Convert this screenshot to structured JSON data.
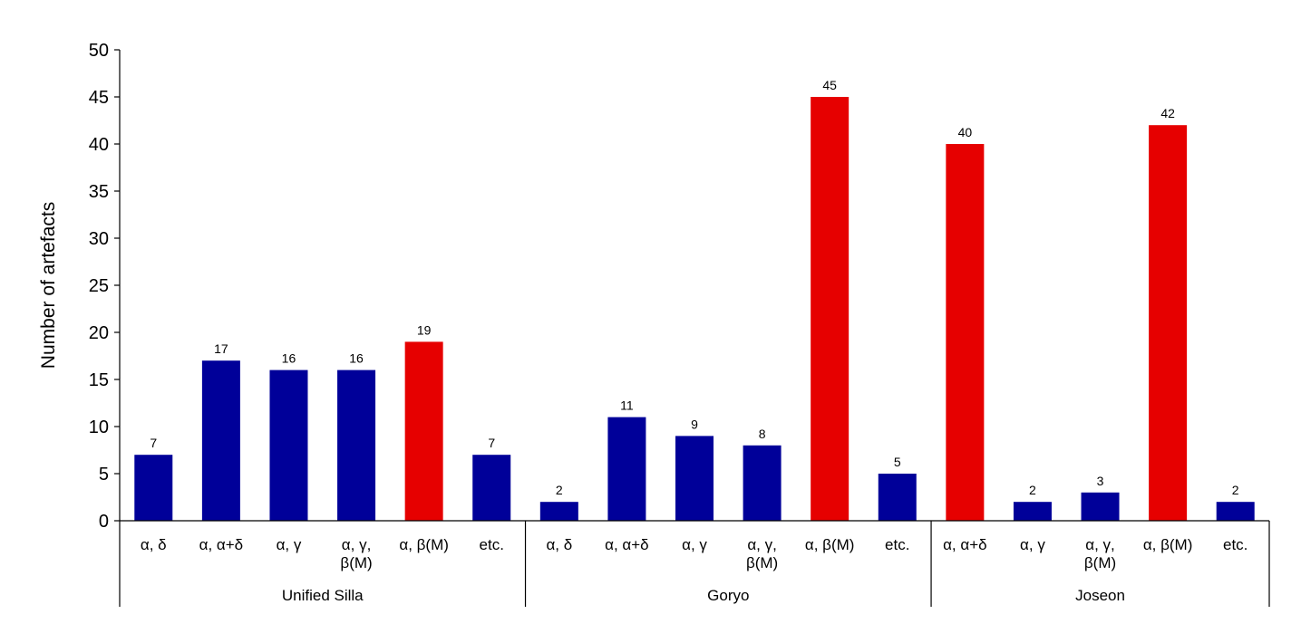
{
  "chart_data": {
    "type": "bar",
    "ylabel": "Number of artefacts",
    "xlabel": "",
    "title": "",
    "ylim": [
      0,
      50
    ],
    "yticks": [
      0,
      5,
      10,
      15,
      20,
      25,
      30,
      35,
      40,
      45,
      50
    ],
    "grid": false,
    "legend": "none",
    "colors": {
      "blue": "#000099",
      "red": "#e60000"
    },
    "groups": [
      {
        "name": "Unified Silla",
        "bars": [
          {
            "label": [
              "α, δ"
            ],
            "value": 7,
            "color": "blue"
          },
          {
            "label": [
              "α, α+δ"
            ],
            "value": 17,
            "color": "blue"
          },
          {
            "label": [
              "α, γ"
            ],
            "value": 16,
            "color": "blue"
          },
          {
            "label": [
              "α, γ,",
              "β(M)"
            ],
            "value": 16,
            "color": "blue"
          },
          {
            "label": [
              "α, β(M)"
            ],
            "value": 19,
            "color": "red"
          },
          {
            "label": [
              "etc."
            ],
            "value": 7,
            "color": "blue"
          }
        ]
      },
      {
        "name": "Goryo",
        "bars": [
          {
            "label": [
              "α, δ"
            ],
            "value": 2,
            "color": "blue"
          },
          {
            "label": [
              "α, α+δ"
            ],
            "value": 11,
            "color": "blue"
          },
          {
            "label": [
              "α, γ"
            ],
            "value": 9,
            "color": "blue"
          },
          {
            "label": [
              "α, γ,",
              "β(M)"
            ],
            "value": 8,
            "color": "blue"
          },
          {
            "label": [
              "α, β(M)"
            ],
            "value": 45,
            "color": "red"
          },
          {
            "label": [
              "etc."
            ],
            "value": 5,
            "color": "blue"
          }
        ]
      },
      {
        "name": "Joseon",
        "bars": [
          {
            "label": [
              "α, α+δ"
            ],
            "value": 40,
            "color": "red"
          },
          {
            "label": [
              "α, γ"
            ],
            "value": 2,
            "color": "blue"
          },
          {
            "label": [
              "α, γ,",
              "β(M)"
            ],
            "value": 3,
            "color": "blue"
          },
          {
            "label": [
              "α, β(M)"
            ],
            "value": 42,
            "color": "red"
          },
          {
            "label": [
              "etc."
            ],
            "value": 2,
            "color": "blue"
          }
        ]
      }
    ]
  }
}
